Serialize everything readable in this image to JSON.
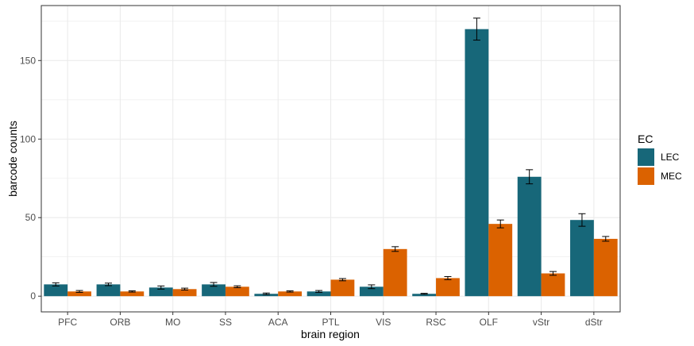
{
  "chart_data": {
    "type": "bar",
    "title": "",
    "xlabel": "brain region",
    "ylabel": "barcode counts",
    "categories": [
      "PFC",
      "ORB",
      "MO",
      "SS",
      "ACA",
      "PTL",
      "VIS",
      "RSC",
      "OLF",
      "vStr",
      "dStr"
    ],
    "series": [
      {
        "name": "LEC",
        "color": "#176779",
        "values": [
          7.5,
          7.5,
          5.5,
          7.5,
          1.5,
          3,
          6,
          1.5,
          170,
          76,
          48.5
        ],
        "errors": [
          1,
          0.8,
          1,
          1.2,
          0.5,
          0.6,
          1.2,
          0.3,
          7,
          4.5,
          4
        ]
      },
      {
        "name": "MEC",
        "color": "#db6200",
        "values": [
          3,
          3,
          4.5,
          6,
          3,
          10.5,
          30,
          11.5,
          46,
          14.5,
          36.5
        ],
        "errors": [
          0.6,
          0.4,
          0.6,
          0.6,
          0.4,
          0.7,
          1.5,
          1,
          2.5,
          1.2,
          1.5
        ]
      }
    ],
    "ylim": [
      -10,
      185
    ],
    "yticks": [
      0,
      50,
      100,
      150
    ],
    "grid": true,
    "legend": {
      "title": "EC",
      "position": "right"
    }
  }
}
